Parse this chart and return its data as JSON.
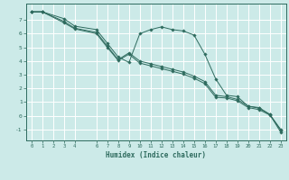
{
  "xlabel": "Humidex (Indice chaleur)",
  "background_color": "#cceae8",
  "grid_color": "#ffffff",
  "line_color": "#2e6b5e",
  "xlim": [
    -0.5,
    23.5
  ],
  "ylim": [
    -1.8,
    8.2
  ],
  "xticks": [
    0,
    1,
    2,
    3,
    4,
    6,
    7,
    8,
    9,
    10,
    11,
    12,
    13,
    14,
    15,
    16,
    17,
    18,
    19,
    20,
    21,
    22,
    23
  ],
  "yticks": [
    -1,
    0,
    1,
    2,
    3,
    4,
    5,
    6,
    7
  ],
  "series": [
    {
      "x": [
        0,
        1,
        3,
        4,
        6,
        7,
        8,
        9,
        10,
        11,
        12,
        13,
        14,
        15,
        16,
        17,
        18,
        19,
        20,
        21,
        22,
        23
      ],
      "y": [
        7.6,
        7.6,
        7.1,
        6.55,
        6.3,
        5.3,
        4.3,
        3.9,
        6.0,
        6.3,
        6.5,
        6.3,
        6.2,
        5.9,
        4.5,
        2.7,
        1.5,
        1.4,
        0.7,
        0.6,
        0.1,
        -1.2
      ]
    },
    {
      "x": [
        0,
        1,
        3,
        4,
        6,
        7,
        8,
        9,
        10,
        11,
        12,
        13,
        14,
        15,
        16,
        17,
        18,
        19,
        20,
        21,
        22,
        23
      ],
      "y": [
        7.6,
        7.6,
        6.9,
        6.4,
        6.1,
        5.1,
        4.1,
        4.6,
        4.0,
        3.8,
        3.6,
        3.4,
        3.2,
        2.9,
        2.5,
        1.5,
        1.4,
        1.2,
        0.7,
        0.55,
        0.1,
        -1.0
      ]
    },
    {
      "x": [
        0,
        1,
        3,
        4,
        6,
        7,
        8,
        9,
        10,
        11,
        12,
        13,
        14,
        15,
        16,
        17,
        18,
        19,
        20,
        21,
        22,
        23
      ],
      "y": [
        7.6,
        7.6,
        6.8,
        6.35,
        6.0,
        5.0,
        4.05,
        4.5,
        3.85,
        3.65,
        3.45,
        3.25,
        3.05,
        2.75,
        2.35,
        1.35,
        1.3,
        1.1,
        0.6,
        0.45,
        0.05,
        -1.05
      ]
    }
  ]
}
